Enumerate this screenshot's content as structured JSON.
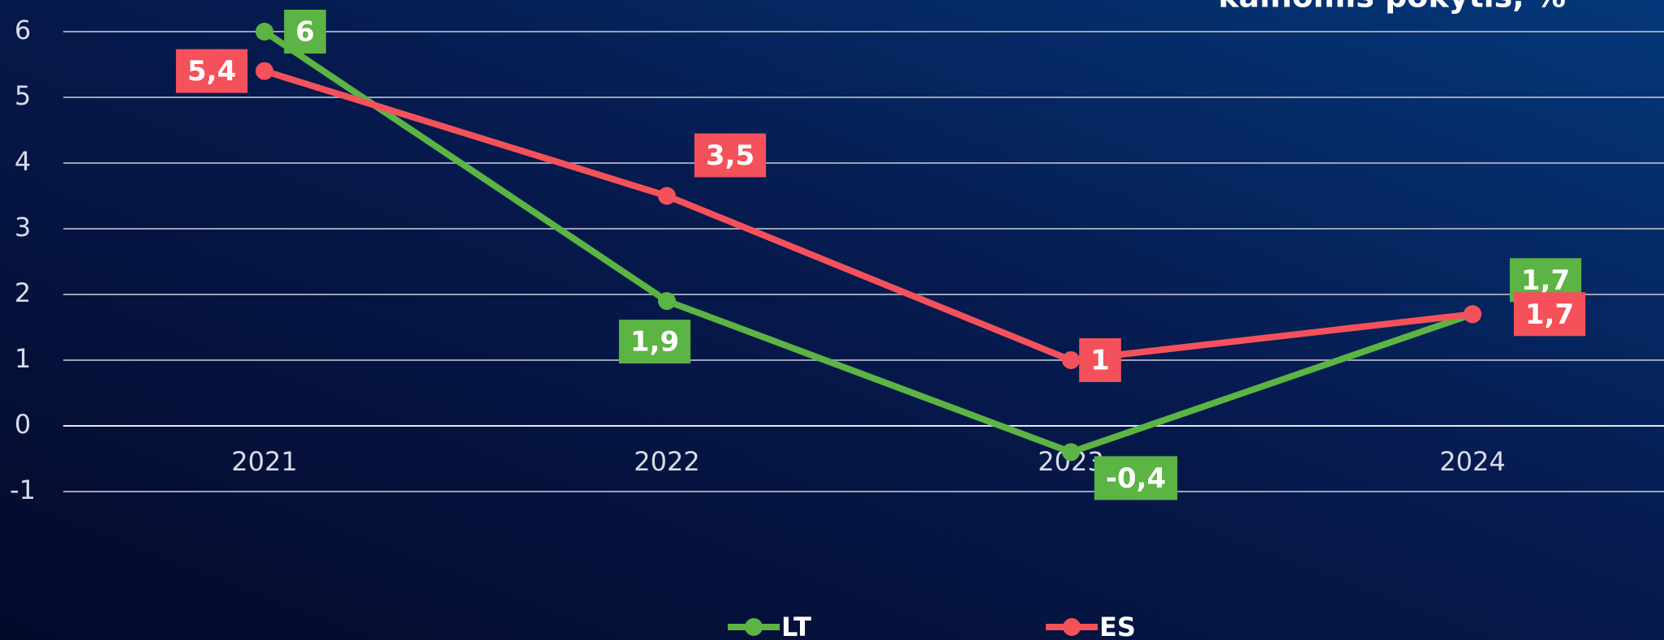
{
  "chart_data": {
    "type": "line",
    "title": "kainomis pokytis, %",
    "categories": [
      "2021",
      "2022",
      "2023",
      "2024"
    ],
    "series": [
      {
        "name": "LT",
        "color": "#5bb443",
        "values": [
          6,
          1.9,
          -0.4,
          1.7
        ],
        "value_labels": [
          "6",
          "1,9",
          "-0,4",
          "1,7"
        ]
      },
      {
        "name": "ES",
        "color": "#f5515a",
        "values": [
          5.4,
          3.5,
          1,
          1.7
        ],
        "value_labels": [
          "5,4",
          "3,5",
          "1",
          "1,7"
        ]
      }
    ],
    "ylim": [
      -1,
      6
    ],
    "yticks": [
      -1,
      0,
      1,
      2,
      3,
      4,
      5,
      6
    ],
    "grid": true
  }
}
